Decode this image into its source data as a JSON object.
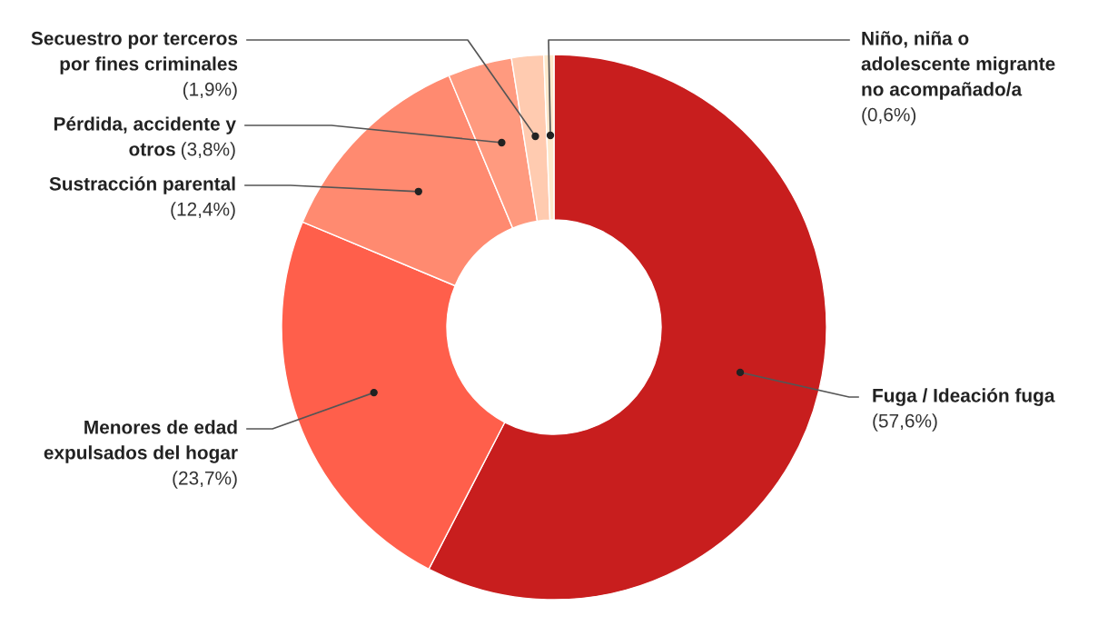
{
  "chart_data": {
    "type": "donut",
    "categories": [
      "Fuga / Ideación fuga",
      "Menores de edad\nexpulsados del hogar",
      "Sustracción parental",
      "Pérdida, accidente y\notros",
      "Secuestro por terceros\npor fines criminales",
      "Niño, niña o\nadolescente migrante\nno acompañado/a"
    ],
    "values": [
      57.6,
      23.7,
      12.4,
      3.8,
      1.9,
      0.6
    ],
    "colors": [
      "#c81e1e",
      "#ff5f4b",
      "#ff8a70",
      "#ff9a7f",
      "#ffcbb0",
      "#fde9cc"
    ],
    "value_labels": [
      "(57,6%)",
      "(23,7%)",
      "(12,4%)",
      "(3,8%)",
      "(1,9%)",
      "(0,6%)"
    ]
  }
}
